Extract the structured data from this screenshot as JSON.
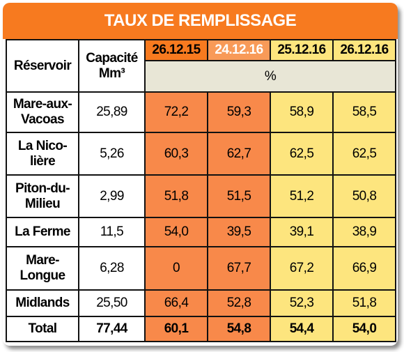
{
  "title": "TAUX DE REMPLISSAGE",
  "header": {
    "reservoir": "Réservoir",
    "capacity_line1": "Capacité",
    "capacity_line2": "Mm³",
    "dates": [
      "26.12.15",
      "24.12.16",
      "25.12.16",
      "26.12.16"
    ],
    "unit": "%"
  },
  "rows": [
    {
      "name": [
        "Mare-aux-",
        "Vacoas"
      ],
      "capacity": "25,89",
      "values": [
        "72,2",
        "59,3",
        "58,9",
        "58,5"
      ]
    },
    {
      "name": [
        "La Nico-",
        "lière"
      ],
      "capacity": "5,26",
      "values": [
        "60,3",
        "62,7",
        "62,5",
        "62,5"
      ]
    },
    {
      "name": [
        "Piton-du-",
        "Milieu"
      ],
      "capacity": "2,99",
      "values": [
        "51,8",
        "51,5",
        "51,2",
        "50,8"
      ]
    },
    {
      "name": [
        "La Ferme",
        ""
      ],
      "capacity": "11,5",
      "values": [
        "54,0",
        "39,5",
        "39,1",
        "38,9"
      ]
    },
    {
      "name": [
        "Mare-",
        "Longue"
      ],
      "capacity": "6,28",
      "values": [
        "0",
        "67,7",
        "67,2",
        "66,9"
      ]
    },
    {
      "name": [
        "Midlands",
        ""
      ],
      "capacity": "25,50",
      "values": [
        "66,4",
        "52,8",
        "52,3",
        "51,8"
      ]
    }
  ],
  "total": {
    "name": "Total",
    "capacity": "77,44",
    "values": [
      "60,1",
      "54,8",
      "54,4",
      "54,0"
    ]
  },
  "colors": {
    "banner": "#f77a1f",
    "orange_cells": "#f8894a",
    "yellow_cells": "#fde57e",
    "unit_row": "#e8e6d6"
  }
}
